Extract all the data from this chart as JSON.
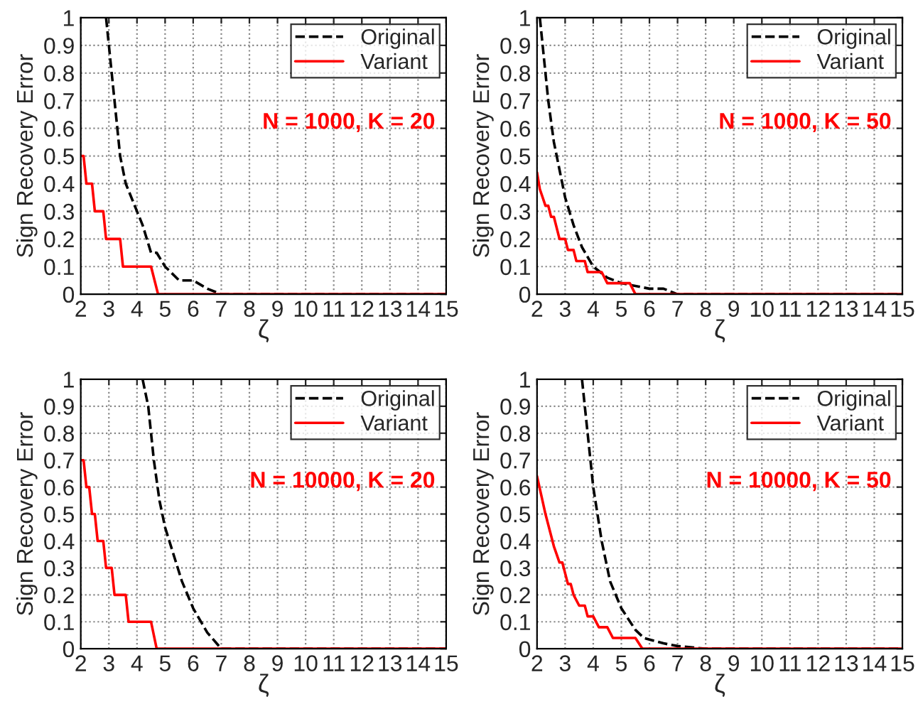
{
  "chart_data": [
    {
      "type": "line",
      "xlabel": "ζ",
      "ylabel": "Sign Recovery Error",
      "annotations": [
        "N = 1000, K = 20"
      ],
      "xlim": [
        2,
        15
      ],
      "ylim": [
        0,
        1
      ],
      "xticks": [
        2,
        3,
        4,
        5,
        6,
        7,
        8,
        9,
        10,
        11,
        12,
        13,
        14,
        15
      ],
      "yticks": [
        0,
        0.1,
        0.2,
        0.3,
        0.4,
        0.5,
        0.6,
        0.7,
        0.8,
        0.9,
        1
      ],
      "grid": true,
      "legend": "top right",
      "series": [
        {
          "name": "Original",
          "color": "#000000",
          "line_style": "dashed",
          "x": [
            2.9,
            3.0,
            3.2,
            3.4,
            3.6,
            4.0,
            4.2,
            4.5,
            4.7,
            5.0,
            5.5,
            6.0,
            6.5,
            7.0,
            15
          ],
          "values": [
            1.0,
            0.9,
            0.7,
            0.5,
            0.4,
            0.3,
            0.25,
            0.15,
            0.15,
            0.1,
            0.05,
            0.05,
            0.02,
            0,
            0
          ]
        },
        {
          "name": "Variant",
          "color": "#ff0000",
          "line_style": "solid",
          "x": [
            2,
            2.1,
            2.2,
            2.4,
            2.5,
            2.8,
            2.9,
            3.4,
            3.5,
            4.5,
            4.75,
            15
          ],
          "values": [
            0.5,
            0.5,
            0.4,
            0.4,
            0.3,
            0.3,
            0.2,
            0.2,
            0.1,
            0.1,
            0,
            0
          ]
        }
      ]
    },
    {
      "type": "line",
      "xlabel": "ζ",
      "ylabel": "Sign Recovery Error",
      "annotations": [
        "N = 1000, K = 50"
      ],
      "xlim": [
        2,
        15
      ],
      "ylim": [
        0,
        1
      ],
      "xticks": [
        2,
        3,
        4,
        5,
        6,
        7,
        8,
        9,
        10,
        11,
        12,
        13,
        14,
        15
      ],
      "yticks": [
        0,
        0.1,
        0.2,
        0.3,
        0.4,
        0.5,
        0.6,
        0.7,
        0.8,
        0.9,
        1
      ],
      "grid": true,
      "legend": "top right",
      "series": [
        {
          "name": "Original",
          "color": "#000000",
          "line_style": "dashed",
          "x": [
            2.1,
            2.2,
            2.4,
            2.6,
            2.8,
            3.0,
            3.3,
            3.6,
            4.0,
            4.5,
            5.0,
            5.5,
            6.0,
            6.5,
            7.0,
            15
          ],
          "values": [
            1.0,
            0.9,
            0.7,
            0.55,
            0.45,
            0.35,
            0.25,
            0.17,
            0.1,
            0.06,
            0.04,
            0.03,
            0.02,
            0.02,
            0,
            0
          ]
        },
        {
          "name": "Variant",
          "color": "#ff0000",
          "line_style": "solid",
          "x": [
            2,
            2.1,
            2.3,
            2.4,
            2.5,
            2.6,
            2.8,
            3.0,
            3.1,
            3.3,
            3.4,
            3.7,
            3.8,
            4.3,
            4.5,
            5.3,
            5.5,
            15
          ],
          "values": [
            0.44,
            0.38,
            0.32,
            0.32,
            0.28,
            0.28,
            0.2,
            0.2,
            0.16,
            0.16,
            0.12,
            0.12,
            0.08,
            0.08,
            0.04,
            0.04,
            0,
            0
          ]
        }
      ]
    },
    {
      "type": "line",
      "xlabel": "ζ",
      "ylabel": "Sign Recovery Error",
      "annotations": [
        "N = 10000, K = 20"
      ],
      "xlim": [
        2,
        15
      ],
      "ylim": [
        0,
        1
      ],
      "xticks": [
        2,
        3,
        4,
        5,
        6,
        7,
        8,
        9,
        10,
        11,
        12,
        13,
        14,
        15
      ],
      "yticks": [
        0,
        0.1,
        0.2,
        0.3,
        0.4,
        0.5,
        0.6,
        0.7,
        0.8,
        0.9,
        1
      ],
      "grid": true,
      "legend": "top right",
      "series": [
        {
          "name": "Original",
          "color": "#000000",
          "line_style": "dashed",
          "x": [
            4.2,
            4.4,
            4.6,
            4.8,
            5.0,
            5.3,
            5.6,
            6.0,
            6.5,
            7.0,
            15
          ],
          "values": [
            1.0,
            0.9,
            0.7,
            0.55,
            0.45,
            0.35,
            0.25,
            0.15,
            0.06,
            0,
            0
          ]
        },
        {
          "name": "Variant",
          "color": "#ff0000",
          "line_style": "solid",
          "x": [
            2,
            2.1,
            2.2,
            2.3,
            2.4,
            2.5,
            2.6,
            2.8,
            2.9,
            3.1,
            3.2,
            3.6,
            3.7,
            4.5,
            4.7,
            15
          ],
          "values": [
            0.7,
            0.7,
            0.6,
            0.6,
            0.5,
            0.5,
            0.4,
            0.4,
            0.3,
            0.3,
            0.2,
            0.2,
            0.1,
            0.1,
            0,
            0
          ]
        }
      ]
    },
    {
      "type": "line",
      "xlabel": "ζ",
      "ylabel": "Sign Recovery Error",
      "annotations": [
        "N = 10000, K = 50"
      ],
      "xlim": [
        2,
        15
      ],
      "ylim": [
        0,
        1
      ],
      "xticks": [
        2,
        3,
        4,
        5,
        6,
        7,
        8,
        9,
        10,
        11,
        12,
        13,
        14,
        15
      ],
      "yticks": [
        0,
        0.1,
        0.2,
        0.3,
        0.4,
        0.5,
        0.6,
        0.7,
        0.8,
        0.9,
        1
      ],
      "grid": true,
      "legend": "top right",
      "series": [
        {
          "name": "Original",
          "color": "#000000",
          "line_style": "dashed",
          "x": [
            3.6,
            3.7,
            3.9,
            4.0,
            4.3,
            4.6,
            5.0,
            5.5,
            5.8,
            6.5,
            7.0,
            8.0,
            15
          ],
          "values": [
            1.0,
            0.9,
            0.7,
            0.6,
            0.4,
            0.25,
            0.15,
            0.07,
            0.04,
            0.02,
            0.01,
            0,
            0
          ]
        },
        {
          "name": "Variant",
          "color": "#ff0000",
          "line_style": "solid",
          "x": [
            2,
            2.3,
            2.6,
            2.8,
            2.9,
            3.1,
            3.2,
            3.3,
            3.5,
            3.7,
            3.8,
            4.0,
            4.2,
            4.5,
            4.7,
            5.5,
            5.75,
            15
          ],
          "values": [
            0.64,
            0.5,
            0.38,
            0.32,
            0.32,
            0.24,
            0.24,
            0.2,
            0.16,
            0.16,
            0.12,
            0.12,
            0.08,
            0.08,
            0.04,
            0.04,
            0,
            0
          ]
        }
      ]
    }
  ]
}
